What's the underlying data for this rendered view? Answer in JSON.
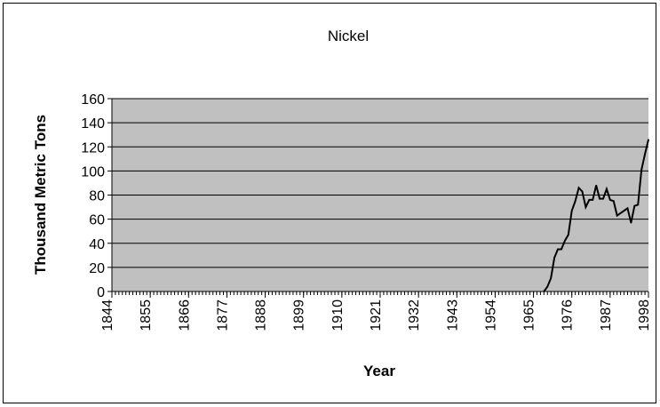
{
  "chart_data": {
    "type": "line",
    "title": "Nickel",
    "xlabel": "Year",
    "ylabel": "Thousand Metric Tons",
    "xlim": [
      1844,
      1998
    ],
    "ylim": [
      0,
      160
    ],
    "yticks": [
      0,
      20,
      40,
      60,
      80,
      100,
      120,
      140,
      160
    ],
    "xtick_labels": [
      "1844",
      "1855",
      "1866",
      "1877",
      "1888",
      "1899",
      "1910",
      "1921",
      "1932",
      "1943",
      "1954",
      "1965",
      "1976",
      "1987",
      "1998"
    ],
    "grid": true,
    "plot_background": "#c0c0c0",
    "line_color": "#000000",
    "series": [
      {
        "x": [
          1968,
          1969,
          1970,
          1971,
          1972,
          1973,
          1974,
          1975,
          1976,
          1977,
          1978,
          1979,
          1980,
          1981,
          1982,
          1983,
          1984,
          1985,
          1986,
          1987,
          1988,
          1989,
          1990,
          1991,
          1992,
          1993,
          1994,
          1995,
          1996,
          1997,
          1998
        ],
        "values": [
          0,
          4,
          11,
          28,
          35,
          35,
          42,
          47,
          67,
          75,
          86,
          83,
          70,
          76,
          76,
          88,
          77,
          77,
          85,
          76,
          75,
          63,
          65,
          67,
          69,
          57,
          71,
          72,
          101,
          114,
          126
        ]
      }
    ]
  }
}
